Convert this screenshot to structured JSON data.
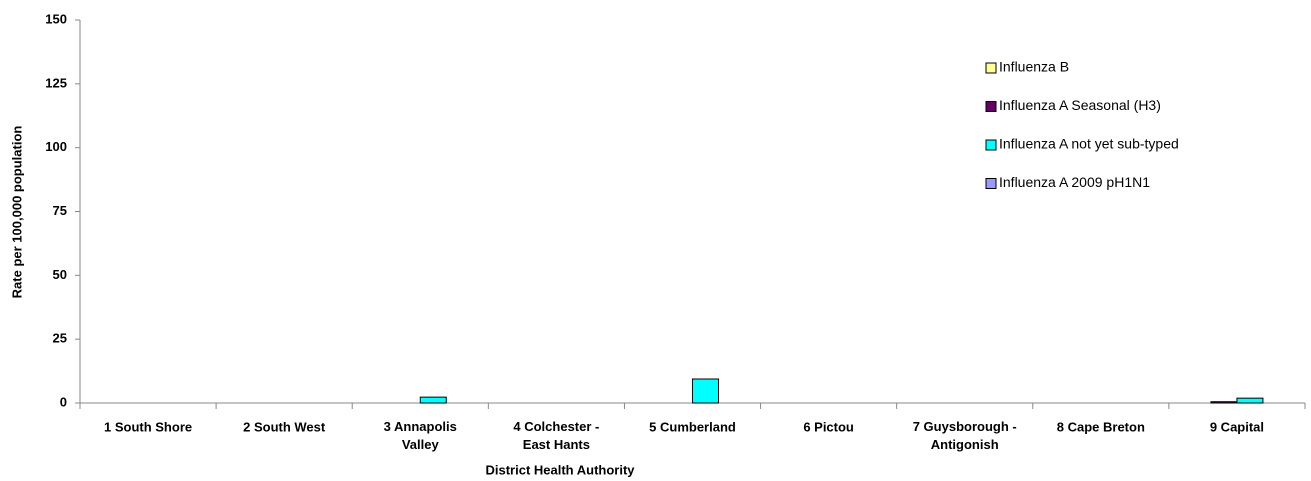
{
  "chart_data": {
    "type": "bar",
    "x_label": "District Health Authority",
    "y_label": "Rate per 100,000 population",
    "categories": [
      "1 South Shore",
      "2 South West",
      "3 Annapolis Valley",
      "4 Colchester - East Hants",
      "5 Cumberland",
      "6 Pictou",
      "7 Guysborough - Antigonish",
      "8 Cape Breton",
      "9 Capital"
    ],
    "series": [
      {
        "name": "Influenza B",
        "color": "#ffff99",
        "values": [
          0,
          0,
          0,
          0,
          0,
          0,
          0,
          0,
          0
        ]
      },
      {
        "name": "Influenza A Seasonal (H3)",
        "color": "#660066",
        "values": [
          0,
          0,
          0,
          0,
          0,
          0,
          0,
          0,
          0.5
        ]
      },
      {
        "name": "Influenza A not yet sub-typed",
        "color": "#00ffff",
        "values": [
          0,
          0,
          2.3,
          0,
          9.4,
          0,
          0,
          0,
          1.9
        ]
      },
      {
        "name": "Influenza A 2009 pH1N1",
        "color": "#9999ff",
        "values": [
          0,
          0,
          0,
          0,
          0,
          0,
          0,
          0,
          0
        ]
      }
    ],
    "ylim": [
      0,
      150
    ],
    "yticks": [
      0,
      25,
      50,
      75,
      100,
      125,
      150
    ],
    "grid": false,
    "legend": "upper right"
  }
}
